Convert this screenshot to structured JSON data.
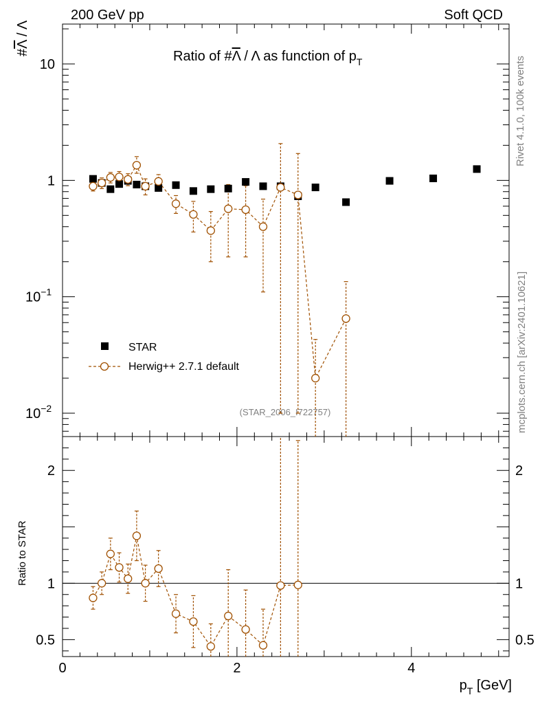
{
  "chart_data": [
    {
      "type": "scatter",
      "title_prefix": "Ratio of #",
      "title_lambda": "Λ",
      "title_mid": " / Λ as function of p",
      "title_sub": "T",
      "ylabel_hash": "#",
      "ylabel_lambda": "Λ",
      "ylabel_rest": " / Λ",
      "yscale": "log",
      "xlim": [
        0,
        5.12
      ],
      "ylim": [
        0.0063,
        22.0
      ],
      "ytick_labels": [
        {
          "value": 10,
          "base": "10",
          "exp": ""
        },
        {
          "value": 1,
          "base": "1",
          "exp": ""
        },
        {
          "value": 0.1,
          "base": "10",
          "exp": "−1"
        },
        {
          "value": 0.01,
          "base": "10",
          "exp": "−2"
        }
      ],
      "annotations": {
        "top_left": "200 GeV pp",
        "top_right": "Soft QCD",
        "analysis_id": "(STAR_2006_I722757)",
        "side_top": "Rivet 4.1.0,  100k events",
        "side_bottom": "mcplots.cern.ch [arXiv:2401.10621]"
      },
      "legend": {
        "position": "bottom-left",
        "entries": [
          {
            "label": "STAR",
            "marker": "square",
            "color": "#000000"
          },
          {
            "label": "Herwig++ 2.7.1 default",
            "marker": "circle-open-dashed",
            "color": "#a05000"
          }
        ]
      },
      "series": [
        {
          "name": "STAR",
          "x": [
            0.35,
            0.45,
            0.55,
            0.65,
            0.75,
            0.85,
            0.95,
            1.1,
            1.3,
            1.5,
            1.7,
            1.9,
            2.1,
            2.3,
            2.5,
            2.7,
            2.9,
            3.25,
            3.75,
            4.25,
            4.75
          ],
          "y": [
            1.03,
            0.95,
            0.84,
            0.93,
            0.99,
            0.92,
            0.89,
            0.86,
            0.91,
            0.81,
            0.84,
            0.85,
            0.97,
            0.89,
            0.89,
            0.73,
            0.87,
            0.65,
            0.99,
            1.04,
            1.25
          ]
        },
        {
          "name": "Herwig++ 2.7.1 default",
          "x": [
            0.35,
            0.45,
            0.55,
            0.65,
            0.75,
            0.85,
            0.95,
            1.1,
            1.3,
            1.5,
            1.7,
            1.9,
            2.1,
            2.3,
            2.5,
            2.7,
            2.9,
            3.25
          ],
          "y": [
            0.89,
            0.95,
            1.06,
            1.07,
            1.02,
            1.35,
            0.89,
            0.98,
            0.63,
            0.51,
            0.37,
            0.57,
            0.56,
            0.4,
            0.87,
            0.75,
            0.02,
            0.065
          ],
          "err_low": [
            0.08,
            0.1,
            0.11,
            0.12,
            0.12,
            0.2,
            0.14,
            0.14,
            0.11,
            0.15,
            0.17,
            0.35,
            0.34,
            0.29,
            0.86,
            0.74,
            0.019,
            0.064
          ],
          "err_high": [
            0.08,
            0.1,
            0.11,
            0.12,
            0.12,
            0.25,
            0.14,
            0.14,
            0.11,
            0.15,
            0.17,
            0.35,
            0.34,
            0.29,
            1.2,
            0.95,
            0.023,
            0.07
          ]
        }
      ]
    },
    {
      "type": "scatter",
      "ylabel": "Ratio to STAR",
      "xlabel_base": "p",
      "xlabel_sub": "T",
      "xlabel_unit": " [GeV]",
      "xlim": [
        0,
        5.12
      ],
      "ylim": [
        0.35,
        2.3
      ],
      "xtick_labels": [
        {
          "value": 0,
          "label": "0"
        },
        {
          "value": 2,
          "label": "2"
        },
        {
          "value": 4,
          "label": "4"
        }
      ],
      "ytick_labels": [
        {
          "value": 2,
          "label": "2"
        },
        {
          "value": 1,
          "label": "1"
        },
        {
          "value": 0.5,
          "label": "0.5"
        }
      ],
      "reference_line": 1,
      "series": [
        {
          "name": "Herwig++ 2.7.1 default / STAR",
          "x": [
            0.35,
            0.45,
            0.55,
            0.65,
            0.75,
            0.85,
            0.95,
            1.1,
            1.3,
            1.5,
            1.7,
            1.9,
            2.1,
            2.3,
            2.5,
            2.7
          ],
          "y": [
            0.87,
            1.0,
            1.26,
            1.14,
            1.04,
            1.42,
            1.0,
            1.13,
            0.73,
            0.66,
            0.44,
            0.71,
            0.59,
            0.45,
            0.98,
            0.985
          ],
          "err_low": [
            0.1,
            0.1,
            0.14,
            0.13,
            0.13,
            0.22,
            0.16,
            0.16,
            0.17,
            0.23,
            0.2,
            0.41,
            0.35,
            0.32,
            0.97,
            0.98
          ],
          "err_high": [
            0.1,
            0.1,
            0.14,
            0.13,
            0.13,
            0.22,
            0.16,
            0.16,
            0.17,
            0.23,
            0.2,
            0.41,
            0.35,
            0.32,
            1.35,
            1.28
          ]
        }
      ]
    }
  ]
}
